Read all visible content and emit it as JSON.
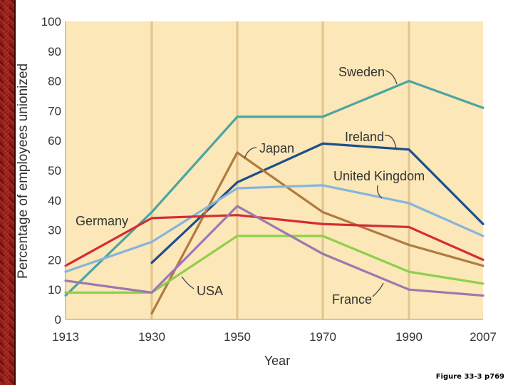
{
  "chart_data": {
    "type": "line",
    "title": "",
    "xlabel": "Year",
    "ylabel": "Percentage of employees unionized",
    "categories": [
      "1913",
      "1930",
      "1950",
      "1970",
      "1990",
      "2007"
    ],
    "ylim": [
      0,
      100
    ],
    "yticks": [
      "0",
      "10",
      "20",
      "30",
      "40",
      "50",
      "60",
      "70",
      "80",
      "90",
      "100"
    ],
    "grid": "vertical",
    "series": [
      {
        "name": "Sweden",
        "color": "#4aa5a3",
        "values": [
          8,
          36,
          68,
          68,
          80,
          71
        ]
      },
      {
        "name": "Ireland",
        "color": "#1c4e8c",
        "values": [
          null,
          19,
          46,
          59,
          57,
          32
        ]
      },
      {
        "name": "Japan",
        "color": "#b07a40",
        "values": [
          null,
          2,
          56,
          36,
          25,
          18
        ]
      },
      {
        "name": "United Kingdom",
        "color": "#86b4dc",
        "values": [
          16,
          26,
          44,
          45,
          39,
          28
        ]
      },
      {
        "name": "Germany",
        "color": "#d42c34",
        "values": [
          18,
          34,
          35,
          32,
          31,
          20
        ]
      },
      {
        "name": "USA",
        "color": "#8ecf4c",
        "values": [
          9,
          9,
          28,
          28,
          16,
          12
        ]
      },
      {
        "name": "France",
        "color": "#9a78b0",
        "values": [
          13,
          9,
          38,
          22,
          10,
          8
        ]
      }
    ],
    "annotations": [
      "Sweden",
      "Ireland",
      "Japan",
      "United Kingdom",
      "Germany",
      "USA",
      "France"
    ]
  },
  "caption": "Figure 33-3 p769"
}
